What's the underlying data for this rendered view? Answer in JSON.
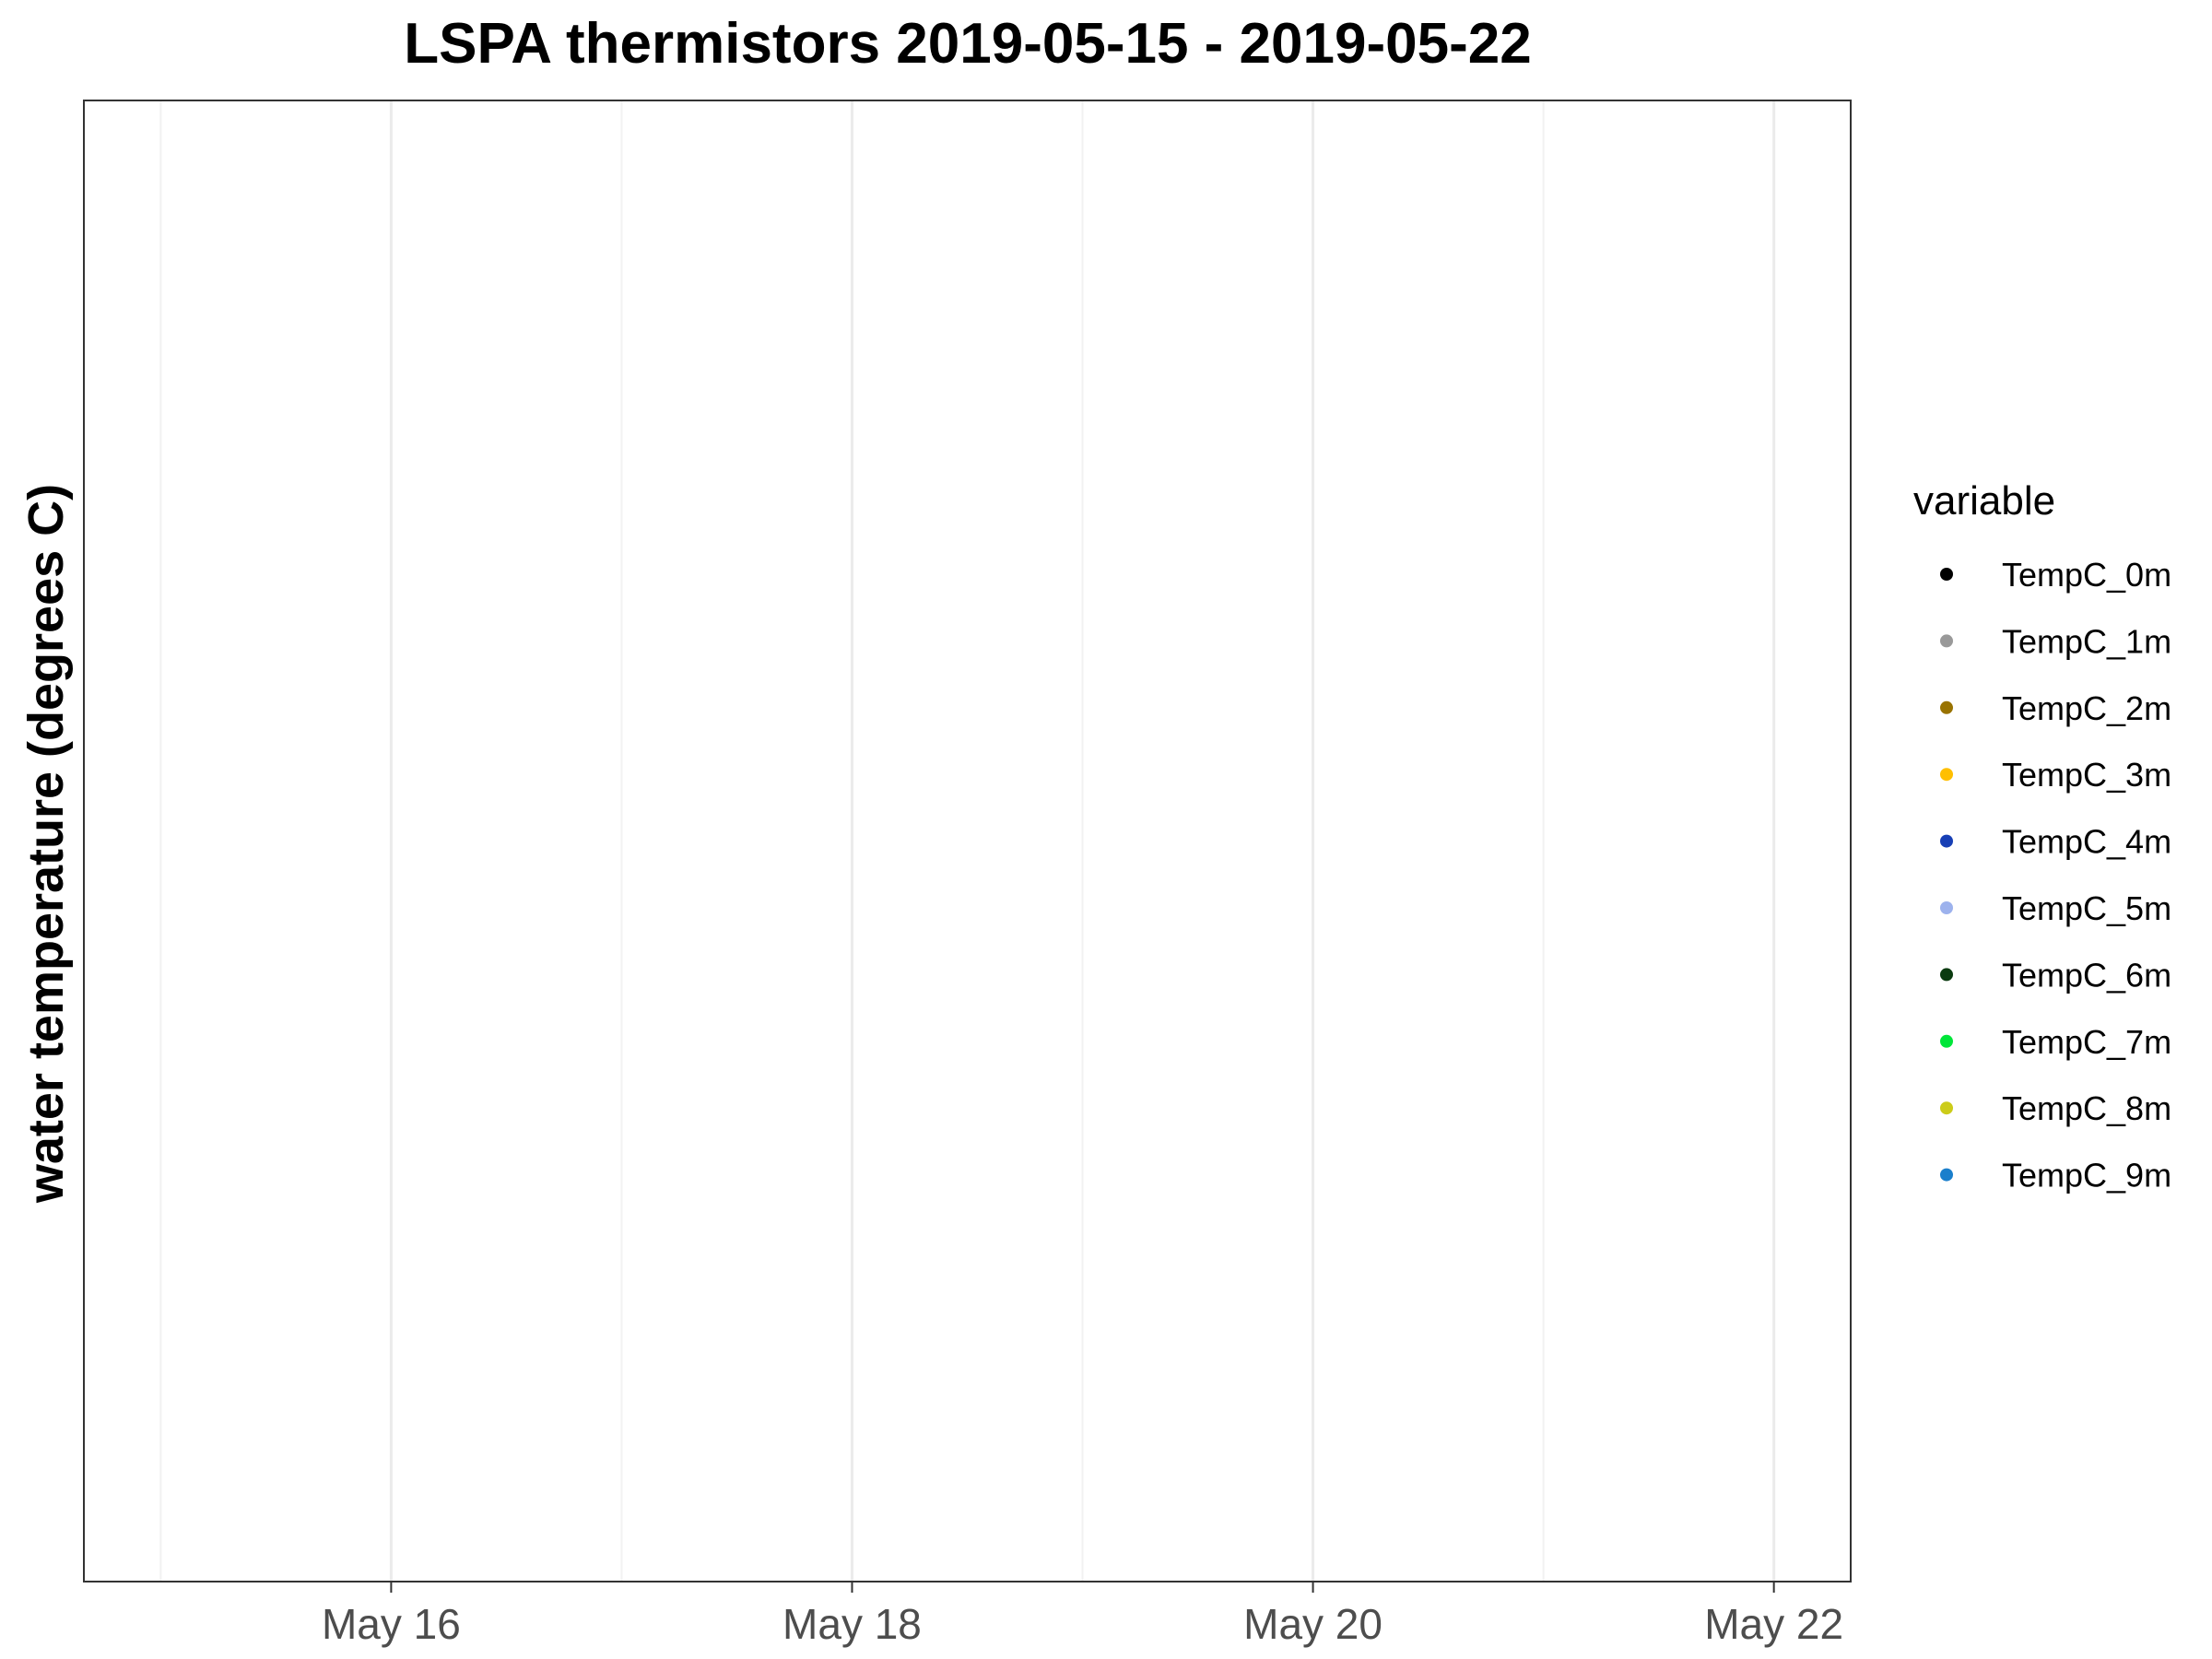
{
  "chart_data": {
    "type": "scatter",
    "title": "LSPA thermistors 2019-05-15 - 2019-05-22",
    "xlabel": "",
    "ylabel": "water temperature (degrees C)",
    "x_axis": {
      "type": "date",
      "range": [
        "2019-05-14T16:00",
        "2019-05-22T08:00"
      ],
      "major_ticks": [
        "2019-05-16",
        "2019-05-18",
        "2019-05-20",
        "2019-05-22"
      ],
      "tick_labels": [
        "May 16",
        "May 18",
        "May 20",
        "May 22"
      ],
      "minor_gridlines": [
        "2019-05-15",
        "2019-05-17",
        "2019-05-19",
        "2019-05-21"
      ]
    },
    "y_axis": {
      "tick_labels": []
    },
    "grid": "vertical only",
    "legend": {
      "title": "variable",
      "position": "right",
      "entries": [
        {
          "label": "TempC_0m",
          "color": "#000000"
        },
        {
          "label": "TempC_1m",
          "color": "#999999"
        },
        {
          "label": "TempC_2m",
          "color": "#997300"
        },
        {
          "label": "TempC_3m",
          "color": "#ffbf00"
        },
        {
          "label": "TempC_4m",
          "color": "#173fb5"
        },
        {
          "label": "TempC_5m",
          "color": "#9db2ed"
        },
        {
          "label": "TempC_6m",
          "color": "#0b3b10"
        },
        {
          "label": "TempC_7m",
          "color": "#00e639"
        },
        {
          "label": "TempC_8m",
          "color": "#cccc19"
        },
        {
          "label": "TempC_9m",
          "color": "#1a7fcc"
        }
      ]
    },
    "series": [
      {
        "name": "TempC_0m",
        "points": []
      },
      {
        "name": "TempC_1m",
        "points": []
      },
      {
        "name": "TempC_2m",
        "points": []
      },
      {
        "name": "TempC_3m",
        "points": []
      },
      {
        "name": "TempC_4m",
        "points": []
      },
      {
        "name": "TempC_5m",
        "points": []
      },
      {
        "name": "TempC_6m",
        "points": []
      },
      {
        "name": "TempC_7m",
        "points": []
      },
      {
        "name": "TempC_8m",
        "points": []
      },
      {
        "name": "TempC_9m",
        "points": []
      }
    ]
  }
}
